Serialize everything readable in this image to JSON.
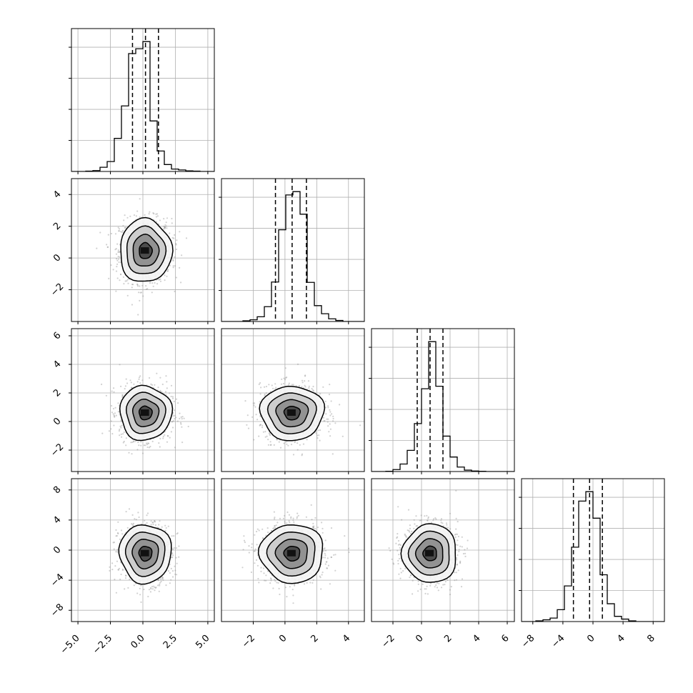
{
  "chart_data": {
    "type": "corner",
    "title": "",
    "n_params": 4,
    "params": [
      {
        "ticks": [
          -5.0,
          -2.5,
          0.0,
          2.5,
          5.0
        ],
        "tick_labels": [
          "−5.0",
          "−2.5",
          "0.0",
          "2.5",
          "5.0"
        ],
        "range": [
          -5.5,
          5.5
        ],
        "quantiles": [
          -0.8,
          0.2,
          1.2
        ],
        "hist": {
          "edges_start": -5.5,
          "bin_width": 0.55,
          "counts": [
            0,
            0,
            1,
            3,
            14,
            33,
            110,
            218,
            392,
            408,
            432,
            168,
            68,
            23,
            8,
            5,
            2,
            1,
            0,
            0
          ]
        }
      },
      {
        "ticks": [
          -2,
          0,
          2,
          4
        ],
        "tick_labels": [
          "−2",
          "0",
          "2",
          "4"
        ],
        "range": [
          -4.0,
          5.0
        ],
        "quantiles": [
          -0.6,
          0.45,
          1.35
        ],
        "hist": {
          "edges_start": -4.0,
          "bin_width": 0.45,
          "counts": [
            0,
            0,
            0,
            2,
            5,
            14,
            44,
            117,
            272,
            375,
            385,
            318,
            116,
            47,
            23,
            8,
            3,
            0,
            0,
            0
          ]
        }
      },
      {
        "ticks": [
          -2,
          0,
          2,
          4,
          6
        ],
        "tick_labels": [
          "−2",
          "0",
          "2",
          "4",
          "6"
        ],
        "range": [
          -3.5,
          6.5
        ],
        "quantiles": [
          -0.3,
          0.6,
          1.5
        ],
        "hist": {
          "edges_start": -3.5,
          "bin_width": 0.5,
          "counts": [
            0,
            0,
            1,
            7,
            27,
            76,
            172,
            297,
            466,
            306,
            127,
            52,
            16,
            5,
            2,
            1,
            0,
            0,
            0,
            0
          ]
        }
      },
      {
        "ticks": [
          -8,
          -4,
          0,
          4,
          8
        ],
        "tick_labels": [
          "−8",
          "−4",
          "0",
          "4",
          "8"
        ],
        "range": [
          -9.5,
          9.5
        ],
        "quantiles": [
          -2.6,
          -0.45,
          1.25
        ],
        "hist": {
          "edges_start": -9.5,
          "bin_width": 0.95,
          "counts": [
            0,
            0,
            2,
            5,
            10,
            34,
            102,
            213,
            345,
            372,
            296,
            134,
            51,
            15,
            7,
            2,
            0,
            0,
            0,
            0
          ]
        }
      }
    ],
    "y_ticks": {
      "1": {
        "ticks": [
          -2,
          0,
          2,
          4
        ],
        "tick_labels": [
          "−2",
          "0",
          "2",
          "4"
        ]
      },
      "2": {
        "ticks": [
          -2,
          0,
          2,
          4,
          6
        ],
        "tick_labels": [
          "−2",
          "0",
          "2",
          "4",
          "6"
        ]
      },
      "3": {
        "ticks": [
          -8,
          -4,
          0,
          4,
          8
        ],
        "tick_labels": [
          "−8",
          "−4",
          "0",
          "4",
          "8"
        ]
      }
    },
    "pairs": [
      {
        "x": 0,
        "y": 1,
        "mean": [
          0.2,
          0.45
        ],
        "sd": [
          1.0,
          1.0
        ]
      },
      {
        "x": 0,
        "y": 2,
        "mean": [
          0.2,
          0.6
        ],
        "sd": [
          1.0,
          0.95
        ]
      },
      {
        "x": 1,
        "y": 2,
        "mean": [
          0.45,
          0.6
        ],
        "sd": [
          1.0,
          0.95
        ]
      },
      {
        "x": 0,
        "y": 3,
        "mean": [
          0.2,
          -0.45
        ],
        "sd": [
          1.0,
          1.95
        ]
      },
      {
        "x": 1,
        "y": 3,
        "mean": [
          0.45,
          -0.45
        ],
        "sd": [
          1.0,
          1.95
        ]
      },
      {
        "x": 2,
        "y": 3,
        "mean": [
          0.6,
          -0.45
        ],
        "sd": [
          0.95,
          1.95
        ]
      }
    ],
    "contour_sigma_levels": [
      0.5,
      1.0,
      1.5,
      2.0
    ],
    "grid": true,
    "colors": {
      "line": "#000000",
      "grid": "#b0b0b0",
      "scatter": "#9a9a9a"
    }
  }
}
